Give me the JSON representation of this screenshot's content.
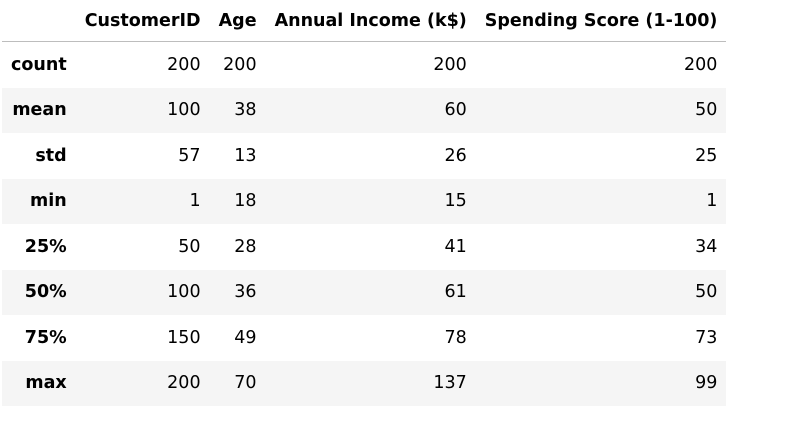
{
  "table": {
    "columns": [
      "CustomerID",
      "Age",
      "Annual Income (k$)",
      "Spending Score (1-100)"
    ],
    "rows": [
      {
        "label": "count",
        "values": [
          "200",
          "200",
          "200",
          "200"
        ]
      },
      {
        "label": "mean",
        "values": [
          "100",
          "38",
          "60",
          "50"
        ]
      },
      {
        "label": "std",
        "values": [
          "57",
          "13",
          "26",
          "25"
        ]
      },
      {
        "label": "min",
        "values": [
          "1",
          "18",
          "15",
          "1"
        ]
      },
      {
        "label": "25%",
        "values": [
          "50",
          "28",
          "41",
          "34"
        ]
      },
      {
        "label": "50%",
        "values": [
          "100",
          "36",
          "61",
          "50"
        ]
      },
      {
        "label": "75%",
        "values": [
          "150",
          "49",
          "78",
          "73"
        ]
      },
      {
        "label": "max",
        "values": [
          "200",
          "70",
          "137",
          "99"
        ]
      }
    ]
  }
}
